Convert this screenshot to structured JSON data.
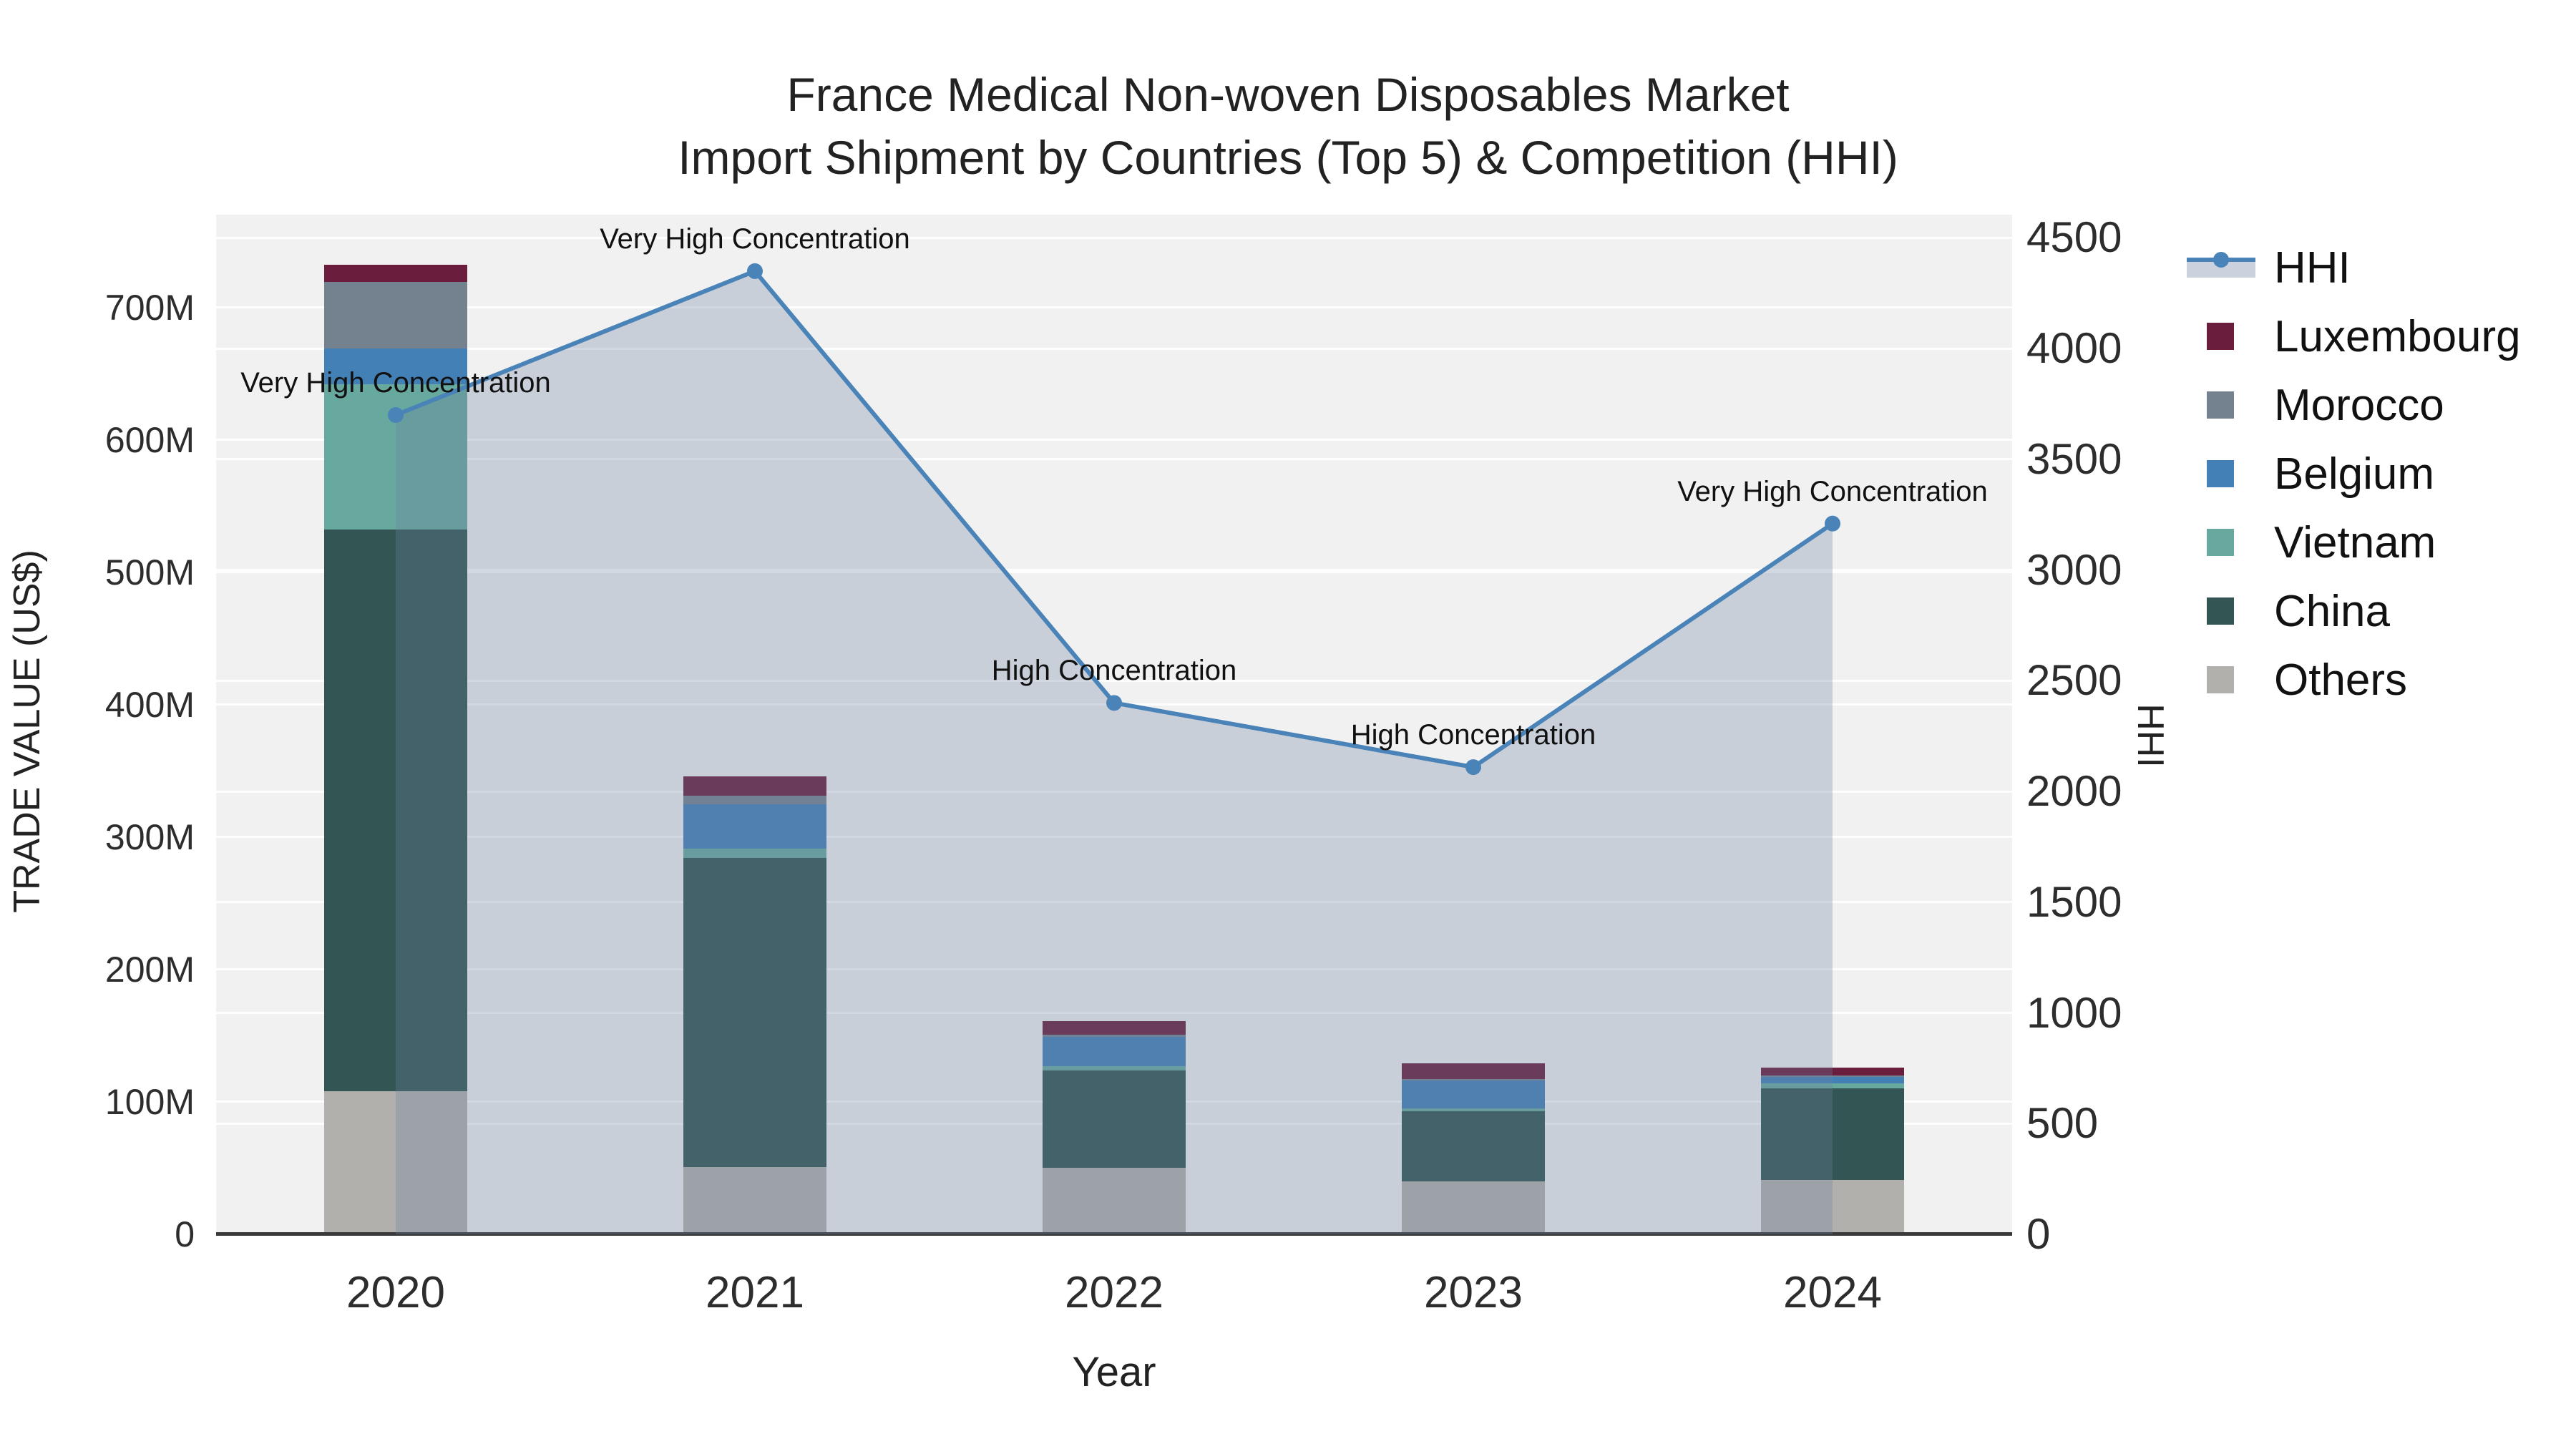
{
  "title": {
    "line1": "France Medical Non-woven Disposables Market",
    "line2": "Import Shipment by Countries (Top 5) & Competition (HHI)"
  },
  "axes": {
    "y_title": "TRADE VALUE (US$)",
    "x_title": "Year",
    "y2_title": "HHI"
  },
  "legend": {
    "items": [
      {
        "id": "hhi",
        "label": "HHI",
        "type": "line",
        "color": "#4a83b8"
      },
      {
        "id": "luxembourg",
        "label": "Luxembourg",
        "type": "square",
        "color": "#6b1d3e"
      },
      {
        "id": "morocco",
        "label": "Morocco",
        "type": "square",
        "color": "#74818f"
      },
      {
        "id": "belgium",
        "label": "Belgium",
        "type": "square",
        "color": "#4280b6"
      },
      {
        "id": "vietnam",
        "label": "Vietnam",
        "type": "square",
        "color": "#67a89f"
      },
      {
        "id": "china",
        "label": "China",
        "type": "square",
        "color": "#335553"
      },
      {
        "id": "others",
        "label": "Others",
        "type": "square",
        "color": "#b1b0ad"
      }
    ]
  },
  "chart_data": {
    "type": "bar",
    "subtype": "stacked-bars-with-line",
    "title": "France Medical Non-woven Disposables Market — Import Shipment by Countries (Top 5) & Competition (HHI)",
    "categories": [
      "2020",
      "2021",
      "2022",
      "2023",
      "2024"
    ],
    "xlabel": "Year",
    "ylabel": "TRADE VALUE (US$)",
    "y2label": "HHI",
    "units": "millions USD",
    "series": [
      {
        "name": "Others",
        "color": "#b1b0ad",
        "values": [
          108,
          51,
          50,
          40,
          41
        ]
      },
      {
        "name": "China",
        "color": "#335553",
        "values": [
          424,
          233,
          74,
          53,
          69
        ]
      },
      {
        "name": "Vietnam",
        "color": "#67a89f",
        "values": [
          110,
          7,
          3,
          2,
          4
        ]
      },
      {
        "name": "Belgium",
        "color": "#4280b6",
        "values": [
          27,
          34,
          22,
          21,
          5
        ]
      },
      {
        "name": "Morocco",
        "color": "#74818f",
        "values": [
          50,
          6,
          2,
          1,
          1
        ]
      },
      {
        "name": "Luxembourg",
        "color": "#6b1d3e",
        "values": [
          13,
          15,
          10,
          12,
          6
        ]
      }
    ],
    "bar_totals": [
      732,
      346,
      161,
      129,
      126
    ],
    "hhi": {
      "name": "HHI",
      "values": [
        3700,
        4350,
        2400,
        2110,
        3210
      ],
      "annotations": [
        "Very High Concentration",
        "Very High Concentration",
        "High Concentration",
        "High Concentration",
        "Very High Concentration"
      ],
      "line_color": "#4a83b8",
      "fill_color": "rgba(110,130,160,0.30)"
    },
    "y_axis": {
      "range": [
        0,
        770
      ],
      "tick_values": [
        0,
        100,
        200,
        300,
        400,
        500,
        600,
        700
      ],
      "tick_labels": [
        "0",
        "100M",
        "200M",
        "300M",
        "400M",
        "500M",
        "600M",
        "700M"
      ]
    },
    "y2_axis": {
      "range": [
        0,
        4605
      ],
      "tick_values": [
        0,
        500,
        1000,
        1500,
        2000,
        2500,
        3000,
        3500,
        4000,
        4500
      ],
      "tick_labels": [
        "0",
        "500",
        "1000",
        "1500",
        "2000",
        "2500",
        "3000",
        "3500",
        "4000",
        "4500"
      ]
    },
    "layout_hints": {
      "grid": true,
      "legend_position": "right",
      "plot_bg": "#f1f1f2"
    }
  }
}
